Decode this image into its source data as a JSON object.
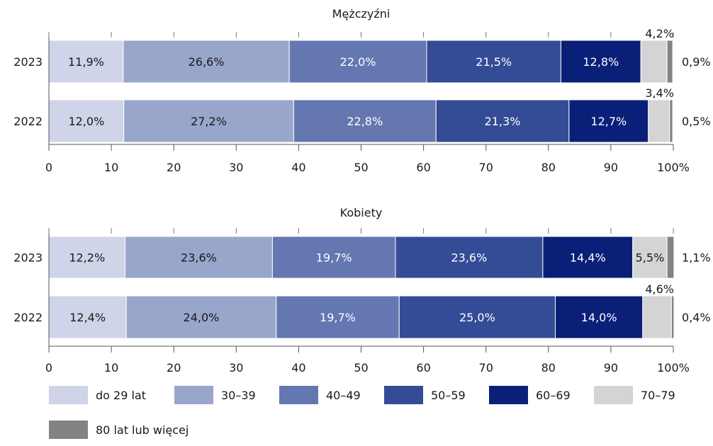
{
  "chart_data": [
    {
      "type": "bar",
      "orientation": "horizontal",
      "stacked": true,
      "title": "Mężczyźni",
      "categories": [
        "2023",
        "2022"
      ],
      "xlim": [
        0,
        100
      ],
      "x_ticks": [
        "0",
        "10",
        "20",
        "30",
        "40",
        "50",
        "60",
        "70",
        "80",
        "90",
        "100%"
      ],
      "series": [
        {
          "name": "do 29 lat",
          "values": [
            11.9,
            12.0
          ],
          "labels": [
            "11,9%",
            "12,0%"
          ]
        },
        {
          "name": "30–39",
          "values": [
            26.6,
            27.2
          ],
          "labels": [
            "26,6%",
            "27,2%"
          ]
        },
        {
          "name": "40–49",
          "values": [
            22.0,
            22.8
          ],
          "labels": [
            "22,0%",
            "22,8%"
          ]
        },
        {
          "name": "50–59",
          "values": [
            21.5,
            21.3
          ],
          "labels": [
            "21,5%",
            "21,3%"
          ]
        },
        {
          "name": "60–69",
          "values": [
            12.8,
            12.7
          ],
          "labels": [
            "12,8%",
            "12,7%"
          ]
        },
        {
          "name": "70–79",
          "values": [
            4.2,
            3.4
          ],
          "labels": [
            "4,2%",
            "3,4%"
          ]
        },
        {
          "name": "80 lat lub więcej",
          "values": [
            0.9,
            0.5
          ],
          "labels": [
            "0,9%",
            "0,5%"
          ]
        }
      ]
    },
    {
      "type": "bar",
      "orientation": "horizontal",
      "stacked": true,
      "title": "Kobiety",
      "categories": [
        "2023",
        "2022"
      ],
      "xlim": [
        0,
        100
      ],
      "x_ticks": [
        "0",
        "10",
        "20",
        "30",
        "40",
        "50",
        "60",
        "70",
        "80",
        "90",
        "100%"
      ],
      "series": [
        {
          "name": "do 29 lat",
          "values": [
            12.2,
            12.4
          ],
          "labels": [
            "12,2%",
            "12,4%"
          ]
        },
        {
          "name": "30–39",
          "values": [
            23.6,
            24.0
          ],
          "labels": [
            "23,6%",
            "24,0%"
          ]
        },
        {
          "name": "40–49",
          "values": [
            19.7,
            19.7
          ],
          "labels": [
            "19,7%",
            "19,7%"
          ]
        },
        {
          "name": "50–59",
          "values": [
            23.6,
            25.0
          ],
          "labels": [
            "23,6%",
            "25,0%"
          ]
        },
        {
          "name": "60–69",
          "values": [
            14.4,
            14.0
          ],
          "labels": [
            "14,4%",
            "14,0%"
          ]
        },
        {
          "name": "70–79",
          "values": [
            5.5,
            4.6
          ],
          "labels": [
            "5,5%",
            "4,6%"
          ]
        },
        {
          "name": "80 lat lub więcej",
          "values": [
            1.1,
            0.4
          ],
          "labels": [
            "1,1%",
            "0,4%"
          ]
        }
      ]
    }
  ],
  "legend": [
    {
      "name": "do 29 lat",
      "color": "#d0d4e8"
    },
    {
      "name": "30–39",
      "color": "#98a6cc"
    },
    {
      "name": "40–49",
      "color": "#6477b0"
    },
    {
      "name": "50–59",
      "color": "#344b96"
    },
    {
      "name": "60–69",
      "color": "#0a1f78"
    },
    {
      "name": "70–79",
      "color": "#d4d4d6"
    },
    {
      "name": "80 lat lub więcej",
      "color": "#838383"
    }
  ],
  "label_text_colors": [
    "#1a1a1a",
    "#1a1a1a",
    "#ffffff",
    "#ffffff",
    "#ffffff"
  ]
}
